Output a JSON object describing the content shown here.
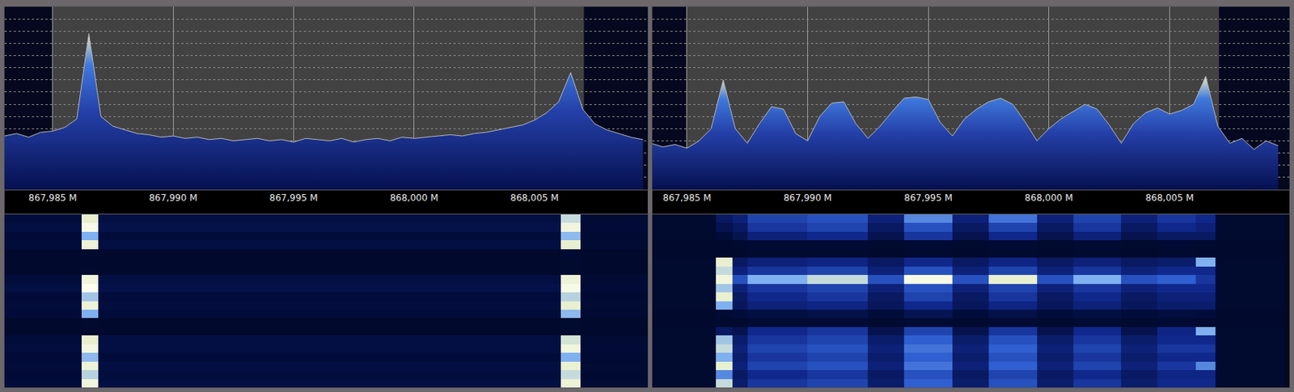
{
  "chart_data": [
    {
      "type": "area",
      "x": [
        867.983,
        867.9835,
        867.984,
        867.9845,
        867.985,
        867.9855,
        867.986,
        867.9865,
        867.987,
        867.9875,
        867.988,
        867.9885,
        867.989,
        867.9895,
        867.99,
        867.9905,
        867.991,
        867.9915,
        867.992,
        867.9925,
        867.993,
        867.9935,
        867.994,
        867.9945,
        867.995,
        867.9955,
        867.996,
        867.9965,
        867.997,
        867.9975,
        867.998,
        867.9985,
        867.999,
        867.9995,
        868.0,
        868.0005,
        868.001,
        868.0015,
        868.002,
        868.0025,
        868.003,
        868.0035,
        868.004,
        868.0045,
        868.005,
        868.0055,
        868.006,
        868.0065,
        868.007,
        868.0075,
        868.008,
        868.0085,
        868.009,
        868.0095
      ],
      "series": [
        {
          "color": "#b8b8b8",
          "values": [
            -106,
            -104,
            -107,
            -103,
            -102,
            -99,
            -92,
            -22,
            -90,
            -98,
            -101,
            -104,
            -105,
            -107,
            -106,
            -108,
            -107,
            -109,
            -108,
            -110,
            -109,
            -108,
            -110,
            -109,
            -111,
            -108,
            -109,
            -110,
            -108,
            -111,
            -109,
            -108,
            -110,
            -107,
            -108,
            -107,
            -106,
            -105,
            -106,
            -104,
            -103,
            -101,
            -99,
            -97,
            -93,
            -87,
            -78,
            -54,
            -84,
            -96,
            -101,
            -104,
            -107,
            -109
          ]
        }
      ],
      "xlim": [
        867.983,
        868.0097
      ],
      "xticks": [
        {
          "value": 867.985,
          "label": "867,985 M"
        },
        {
          "value": 867.99,
          "label": "867,990 M"
        },
        {
          "value": 867.995,
          "label": "867,995 M"
        },
        {
          "value": 868.0,
          "label": "868,000 M"
        },
        {
          "value": 868.005,
          "label": "868,005 M"
        }
      ],
      "ylim": [
        -150,
        0
      ],
      "yticks": [
        -150,
        -140,
        -130,
        -120,
        -110,
        -100,
        -90,
        -80,
        -70,
        -60,
        -50,
        -40,
        -30,
        -20,
        -10,
        0
      ],
      "grid": true,
      "tick_labels": "x",
      "passband": [
        867.985,
        868.00705
      ]
    },
    {
      "type": "heatmap",
      "bins": [
        867.983,
        867.9862,
        867.9869,
        868.0061,
        868.0069,
        868.0097
      ],
      "cells": [
        [
          10,
          85,
          12,
          80,
          8
        ],
        [
          12,
          95,
          14,
          90,
          9
        ],
        [
          9,
          70,
          10,
          72,
          7
        ],
        [
          10,
          88,
          12,
          85,
          8
        ],
        [
          5,
          6,
          5,
          7,
          5
        ],
        [
          5,
          5,
          5,
          6,
          5
        ],
        [
          5,
          6,
          5,
          6,
          5
        ],
        [
          10,
          90,
          12,
          88,
          8
        ],
        [
          12,
          98,
          14,
          95,
          9
        ],
        [
          9,
          75,
          10,
          78,
          7
        ],
        [
          10,
          88,
          11,
          85,
          8
        ],
        [
          9,
          70,
          10,
          72,
          7
        ],
        [
          5,
          6,
          5,
          6,
          5
        ],
        [
          5,
          5,
          5,
          6,
          5
        ],
        [
          10,
          85,
          12,
          82,
          8
        ],
        [
          11,
          92,
          12,
          90,
          9
        ],
        [
          9,
          72,
          10,
          70,
          7
        ],
        [
          10,
          88,
          12,
          86,
          8
        ],
        [
          9,
          78,
          11,
          80,
          7
        ],
        [
          10,
          90,
          12,
          88,
          8
        ]
      ],
      "zlim": [
        0,
        100
      ],
      "xlim": [
        867.983,
        868.0097
      ],
      "ylim": [
        -0.5,
        19.5
      ],
      "tick_labels": false
    },
    {
      "type": "area",
      "x": [
        867.9835,
        867.984,
        867.9845,
        867.985,
        867.9855,
        867.986,
        867.9865,
        867.987,
        867.9875,
        867.988,
        867.9885,
        867.989,
        867.9895,
        867.99,
        867.9905,
        867.991,
        867.9915,
        867.992,
        867.9925,
        867.993,
        867.9935,
        867.994,
        867.9945,
        867.995,
        867.9955,
        867.996,
        867.9965,
        867.997,
        867.9975,
        867.998,
        867.9985,
        867.999,
        867.9995,
        868.0,
        868.0005,
        868.001,
        868.0015,
        868.002,
        868.0025,
        868.003,
        868.0035,
        868.004,
        868.0045,
        868.005,
        868.0055,
        868.006,
        868.0065,
        868.007,
        868.0075,
        868.008,
        868.0085,
        868.009,
        868.0095
      ],
      "series": [
        {
          "color": "#b8b8b8",
          "values": [
            -112,
            -115,
            -113,
            -116,
            -110,
            -100,
            -60,
            -100,
            -112,
            -96,
            -82,
            -84,
            -104,
            -110,
            -90,
            -79,
            -78,
            -96,
            -108,
            -98,
            -86,
            -75,
            -74,
            -76,
            -95,
            -106,
            -92,
            -84,
            -78,
            -75,
            -80,
            -94,
            -110,
            -100,
            -92,
            -86,
            -80,
            -84,
            -97,
            -112,
            -96,
            -87,
            -83,
            -88,
            -85,
            -80,
            -57,
            -98,
            -112,
            -108,
            -117,
            -110,
            -114
          ]
        }
      ],
      "xlim": [
        867.98356,
        868.00997
      ],
      "xticks": [
        {
          "value": 867.985,
          "label": "867,985 M"
        },
        {
          "value": 867.99,
          "label": "867,990 M"
        },
        {
          "value": 867.995,
          "label": "867,995 M"
        },
        {
          "value": 868.0,
          "label": "868,000 M"
        },
        {
          "value": 868.005,
          "label": "868,005 M"
        }
      ],
      "ylim": [
        -150,
        0
      ],
      "yticks": [
        -150,
        -140,
        -130,
        -120,
        -110,
        -100,
        -90,
        -80,
        -70,
        -60,
        -50,
        -40,
        -30,
        -20,
        -10,
        0
      ],
      "grid": true,
      "tick_labels": "x",
      "passband": [
        867.985,
        868.00705
      ]
    },
    {
      "type": "heatmap",
      "bins": [
        867.983,
        867.9862,
        867.9869,
        867.9875,
        867.99,
        867.9925,
        867.994,
        867.996,
        867.9975,
        867.9995,
        868.001,
        868.003,
        868.0045,
        868.0061,
        868.0069,
        868.0098
      ],
      "cells": [
        [
          6,
          20,
          25,
          40,
          45,
          25,
          60,
          25,
          55,
          25,
          40,
          25,
          35,
          30,
          6
        ],
        [
          6,
          15,
          20,
          35,
          40,
          20,
          45,
          20,
          40,
          20,
          35,
          20,
          30,
          25,
          6
        ],
        [
          6,
          10,
          15,
          25,
          30,
          15,
          35,
          15,
          30,
          15,
          25,
          15,
          20,
          20,
          6
        ],
        [
          5,
          5,
          6,
          8,
          8,
          6,
          8,
          6,
          8,
          6,
          8,
          6,
          7,
          6,
          5
        ],
        [
          5,
          5,
          5,
          6,
          6,
          5,
          6,
          5,
          6,
          5,
          6,
          5,
          6,
          5,
          5
        ],
        [
          6,
          85,
          20,
          25,
          28,
          20,
          30,
          20,
          28,
          20,
          25,
          20,
          22,
          70,
          6
        ],
        [
          6,
          80,
          25,
          35,
          40,
          25,
          45,
          25,
          40,
          25,
          35,
          25,
          30,
          30,
          6
        ],
        [
          6,
          90,
          45,
          70,
          80,
          45,
          95,
          45,
          85,
          45,
          70,
          45,
          50,
          35,
          6
        ],
        [
          6,
          75,
          25,
          35,
          40,
          25,
          45,
          25,
          40,
          25,
          35,
          25,
          30,
          30,
          6
        ],
        [
          6,
          85,
          20,
          30,
          35,
          20,
          40,
          20,
          35,
          20,
          30,
          20,
          25,
          25,
          6
        ],
        [
          6,
          70,
          18,
          25,
          28,
          18,
          30,
          18,
          28,
          18,
          25,
          18,
          22,
          22,
          6
        ],
        [
          5,
          8,
          10,
          12,
          14,
          10,
          16,
          10,
          14,
          10,
          12,
          10,
          11,
          10,
          5
        ],
        [
          5,
          6,
          6,
          8,
          8,
          6,
          8,
          6,
          8,
          6,
          8,
          6,
          7,
          6,
          5
        ],
        [
          6,
          20,
          15,
          30,
          35,
          15,
          40,
          15,
          35,
          15,
          30,
          15,
          28,
          70,
          6
        ],
        [
          6,
          75,
          22,
          35,
          40,
          22,
          50,
          22,
          45,
          22,
          35,
          22,
          30,
          30,
          6
        ],
        [
          6,
          80,
          25,
          40,
          45,
          25,
          55,
          25,
          50,
          25,
          40,
          25,
          35,
          35,
          6
        ],
        [
          6,
          70,
          22,
          35,
          40,
          22,
          50,
          22,
          45,
          22,
          35,
          22,
          30,
          30,
          6
        ],
        [
          6,
          85,
          25,
          40,
          45,
          25,
          55,
          25,
          50,
          25,
          40,
          25,
          35,
          60,
          6
        ],
        [
          6,
          60,
          20,
          30,
          35,
          20,
          45,
          20,
          40,
          20,
          30,
          20,
          28,
          28,
          6
        ],
        [
          6,
          80,
          22,
          35,
          40,
          22,
          50,
          22,
          45,
          22,
          35,
          22,
          30,
          30,
          6
        ]
      ],
      "zlim": [
        0,
        100
      ],
      "xlim": [
        867.98356,
        868.00997
      ],
      "ylim": [
        -0.5,
        19.5
      ],
      "tick_labels": false
    }
  ]
}
